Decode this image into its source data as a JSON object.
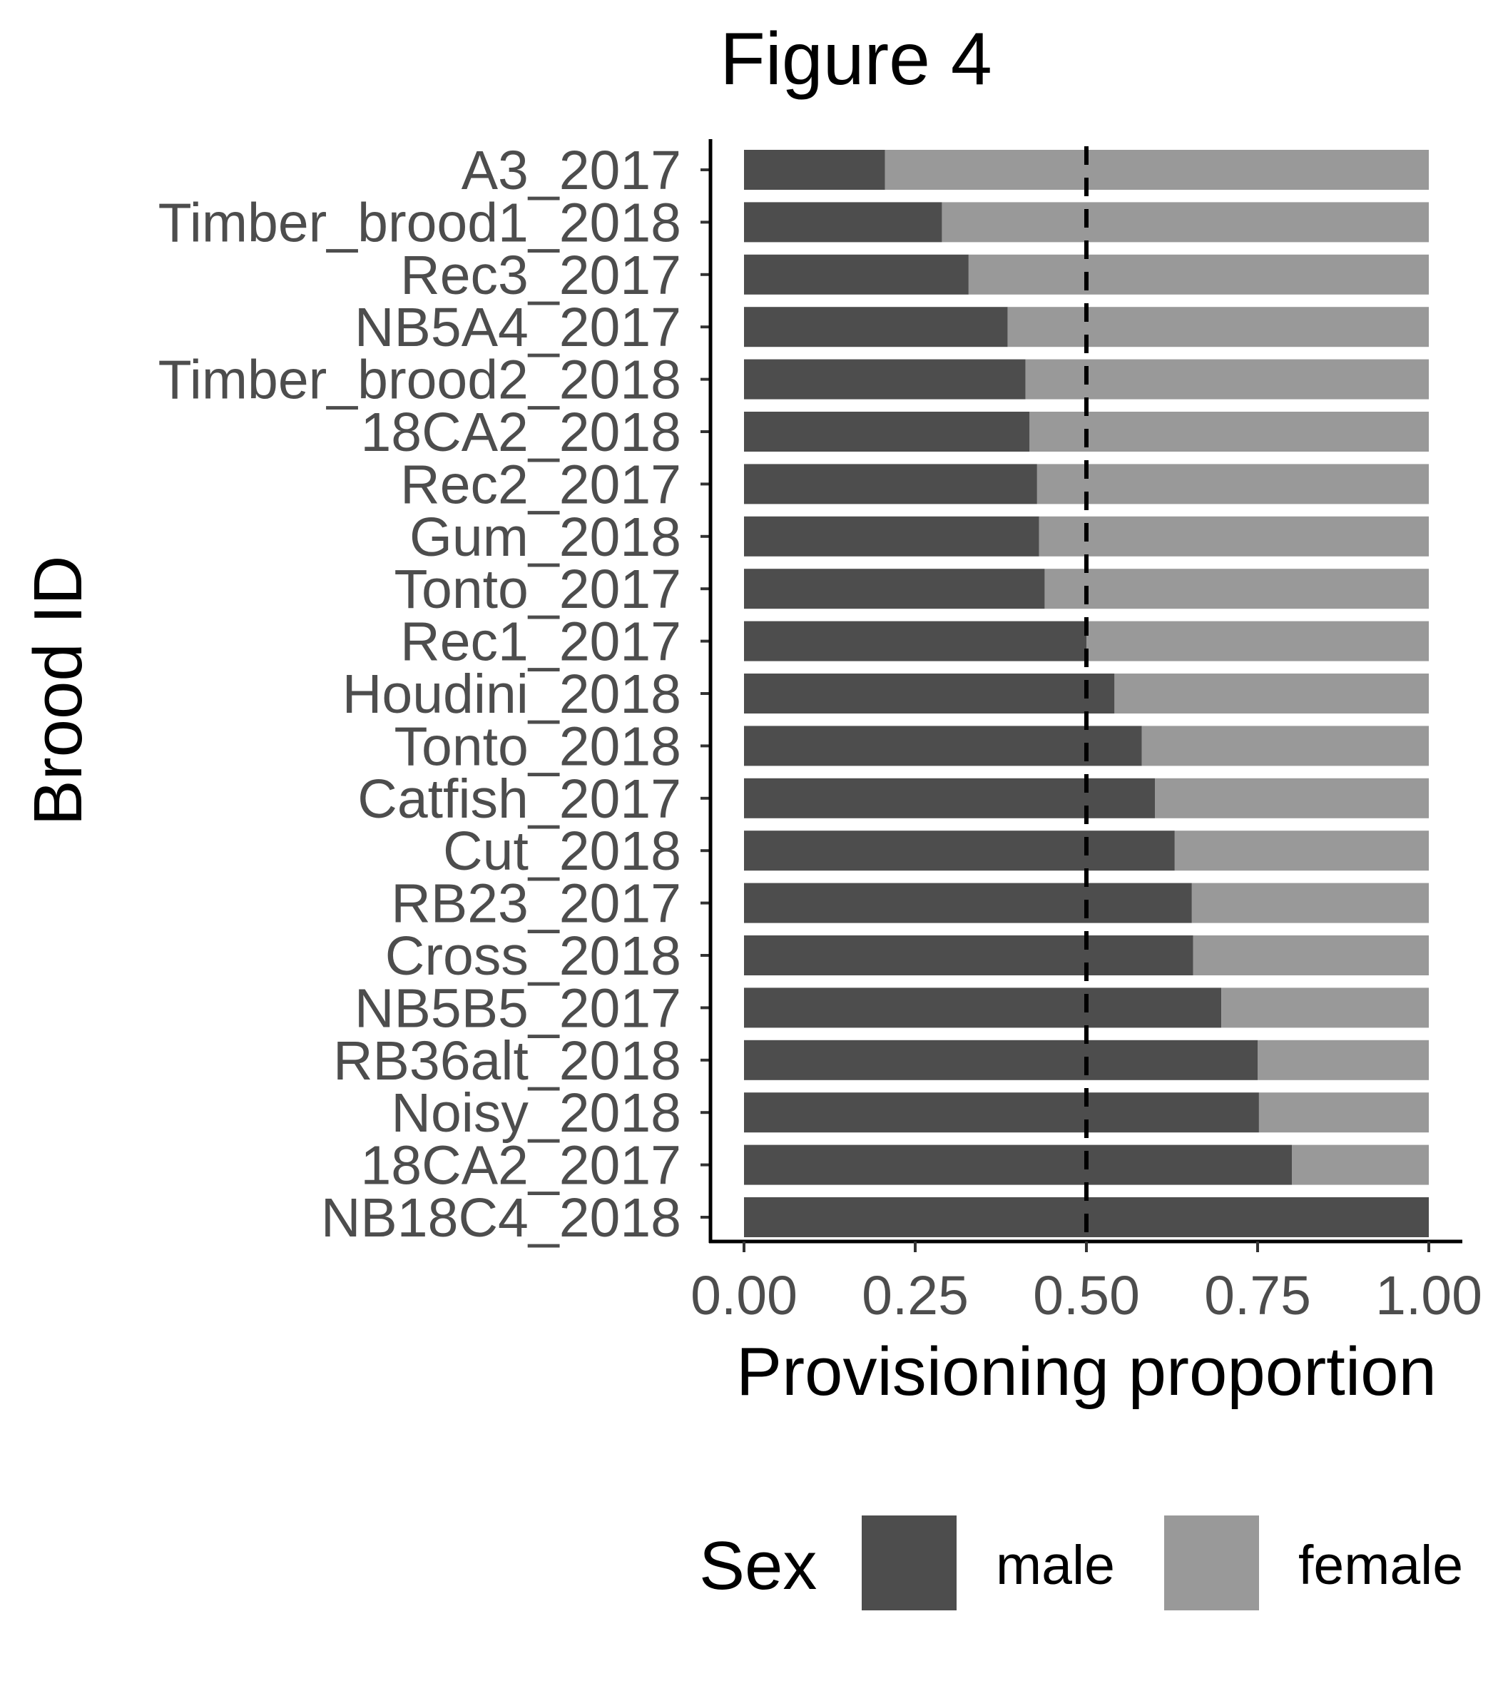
{
  "chart_data": {
    "type": "bar",
    "orientation": "horizontal",
    "stacked": true,
    "title": "Figure 4",
    "xlabel": "Provisioning proportion",
    "ylabel": "Brood ID",
    "xlim": [
      0,
      1
    ],
    "xticks": [
      "0.00",
      "0.25",
      "0.50",
      "0.75",
      "1.00"
    ],
    "reference_line": {
      "x": 0.5,
      "style": "dashed"
    },
    "categories": [
      "A3_2017",
      "Timber_brood1_2018",
      "Rec3_2017",
      "NB5A4_2017",
      "Timber_brood2_2018",
      "18CA2_2018",
      "Rec2_2017",
      "Gum_2018",
      "Tonto_2017",
      "Rec1_2017",
      "Houdini_2018",
      "Tonto_2018",
      "Catfish_2017",
      "Cut_2018",
      "RB23_2017",
      "Cross_2018",
      "NB5B5_2017",
      "RB36alt_2018",
      "Noisy_2018",
      "18CA2_2017",
      "NB18C4_2018"
    ],
    "series": [
      {
        "name": "male",
        "color": "#4d4d4d",
        "values": [
          0.206,
          0.289,
          0.328,
          0.385,
          0.411,
          0.417,
          0.428,
          0.431,
          0.439,
          0.5,
          0.541,
          0.581,
          0.6,
          0.629,
          0.654,
          0.656,
          0.697,
          0.75,
          0.752,
          0.8,
          1.0
        ]
      },
      {
        "name": "female",
        "color": "#999999",
        "values": [
          0.794,
          0.711,
          0.672,
          0.615,
          0.589,
          0.583,
          0.572,
          0.569,
          0.561,
          0.5,
          0.459,
          0.419,
          0.4,
          0.371,
          0.346,
          0.344,
          0.303,
          0.25,
          0.248,
          0.2,
          0.0
        ]
      }
    ],
    "legend": {
      "title": "Sex",
      "position": "bottom"
    },
    "grid": false
  }
}
